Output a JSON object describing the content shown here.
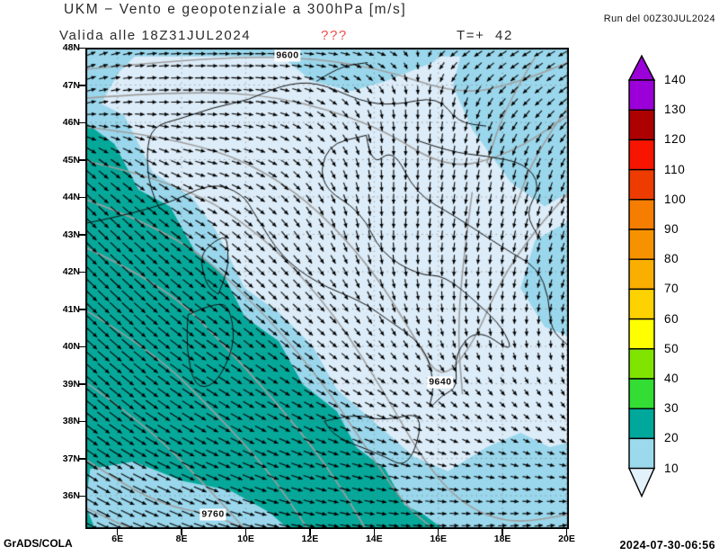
{
  "header": {
    "title": "UKM − Vento e geopotenziale a 300hPa [m/s]",
    "run_label": "Run del 00Z30JUL2024",
    "valid_label": "Valida alle 18Z31JUL2024",
    "missing_flag": "???",
    "lead_label": "T=+  42"
  },
  "footer": {
    "credit": "GrADS/COLA",
    "generated": "2024-07-30-06:56"
  },
  "axes": {
    "lat_labels": [
      "48N",
      "47N",
      "46N",
      "45N",
      "44N",
      "43N",
      "42N",
      "41N",
      "40N",
      "39N",
      "38N",
      "37N",
      "36N"
    ],
    "lon_labels": [
      "6E",
      "8E",
      "10E",
      "12E",
      "14E",
      "16E",
      "18E",
      "20E"
    ]
  },
  "colorbar": {
    "boundary_labels": [
      "140",
      "130",
      "120",
      "110",
      "100",
      "90",
      "80",
      "70",
      "60",
      "50",
      "40",
      "30",
      "20",
      "10"
    ],
    "band_colors_top_to_bottom": [
      "#9b00d8",
      "#ad0000",
      "#f81500",
      "#ee3c00",
      "#f57d00",
      "#f69200",
      "#f9ae00",
      "#fcd200",
      "#ffff00",
      "#80e400",
      "#33dd33",
      "#00a79b",
      "#9cd9ec"
    ],
    "above_max_color": "#9b00d8",
    "below_min_color": "#e2f1fa"
  },
  "contour_labels": [
    {
      "text": "9600",
      "fx": 0.418,
      "fy": 0.017
    },
    {
      "text": "9640",
      "fx": 0.734,
      "fy": 0.695
    },
    {
      "text": "9760",
      "fx": 0.264,
      "fy": 0.97
    }
  ],
  "chart_data": {
    "type": "map",
    "title": "UKM wind and geopotential at 300hPa",
    "units": "m/s",
    "lon_range": [
      5.0,
      20.1
    ],
    "lat_range": [
      35.1,
      48.0
    ],
    "shading_variable": "wind speed",
    "shading_levels": [
      10,
      20,
      30,
      40,
      50,
      60,
      70,
      80,
      90,
      100,
      110,
      120,
      130,
      140
    ],
    "shading_colors_low_to_high": [
      "#e2f1fa",
      "#9cd9ec",
      "#00a79b",
      "#33dd33",
      "#80e400",
      "#ffff00",
      "#fcd200",
      "#f9ae00",
      "#f69200",
      "#f57d00",
      "#ee3c00",
      "#f81500",
      "#ad0000",
      "#9b00d8"
    ],
    "contour_variable": "geopotential height",
    "contour_interval": 20,
    "labeled_contours": [
      9600,
      9640,
      9760
    ],
    "colors": {
      "pale": "#dcecf8",
      "light": "#9ad7ec",
      "teal": "#06a89a",
      "contour": "#9e9e9e",
      "coast": "#111111",
      "arrow": "#000000"
    },
    "regions": [
      {
        "color": "light",
        "points": [
          [
            0,
            0.1
          ],
          [
            0.08,
            0.14
          ],
          [
            0.14,
            0.26
          ],
          [
            0.22,
            0.31
          ],
          [
            0.27,
            0.38
          ],
          [
            0.33,
            0.5
          ],
          [
            0.4,
            0.55
          ],
          [
            0.47,
            0.62
          ],
          [
            0.52,
            0.71
          ],
          [
            0.6,
            0.78
          ],
          [
            0.68,
            0.85
          ],
          [
            0.75,
            0.88
          ],
          [
            0.83,
            0.83
          ],
          [
            0.9,
            0.8
          ],
          [
            0.96,
            0.83
          ],
          [
            1,
            0.82
          ],
          [
            1,
            1
          ],
          [
            0,
            1
          ]
        ]
      },
      {
        "color": "light",
        "points": [
          [
            0,
            0
          ],
          [
            1,
            0
          ],
          [
            1,
            0.018
          ],
          [
            0,
            0.018
          ]
        ]
      },
      {
        "color": "light",
        "points": [
          [
            0,
            0
          ],
          [
            0.12,
            0
          ],
          [
            0.07,
            0.05
          ],
          [
            0.03,
            0.12
          ],
          [
            0,
            0.15
          ]
        ]
      },
      {
        "color": "light",
        "points": [
          [
            0.4,
            0
          ],
          [
            0.75,
            0
          ],
          [
            0.72,
            0.03
          ],
          [
            0.62,
            0.07
          ],
          [
            0.55,
            0.09
          ],
          [
            0.47,
            0.07
          ],
          [
            0.42,
            0.03
          ]
        ]
      },
      {
        "color": "light",
        "points": [
          [
            0.78,
            0
          ],
          [
            1,
            0
          ],
          [
            1,
            0.3
          ],
          [
            0.95,
            0.33
          ],
          [
            0.88,
            0.28
          ],
          [
            0.8,
            0.17
          ],
          [
            0.76,
            0.08
          ]
        ]
      },
      {
        "color": "light",
        "points": [
          [
            1,
            0.36
          ],
          [
            0.93,
            0.4
          ],
          [
            0.9,
            0.5
          ],
          [
            0.95,
            0.58
          ],
          [
            1,
            0.6
          ]
        ]
      },
      {
        "color": "pale",
        "points": [
          [
            0.62,
            0.52
          ],
          [
            0.7,
            0.55
          ],
          [
            0.73,
            0.62
          ],
          [
            0.7,
            0.7
          ],
          [
            0.65,
            0.66
          ],
          [
            0.61,
            0.58
          ]
        ]
      },
      {
        "color": "pale",
        "points": [
          [
            0.88,
            0.6
          ],
          [
            0.94,
            0.58
          ],
          [
            0.985,
            0.62
          ],
          [
            0.97,
            0.68
          ],
          [
            0.91,
            0.7
          ],
          [
            0.87,
            0.66
          ]
        ]
      },
      {
        "color": "teal",
        "points": [
          [
            0,
            0.155
          ],
          [
            0.06,
            0.2
          ],
          [
            0.11,
            0.295
          ],
          [
            0.175,
            0.33
          ],
          [
            0.225,
            0.42
          ],
          [
            0.285,
            0.47
          ],
          [
            0.33,
            0.56
          ],
          [
            0.4,
            0.61
          ],
          [
            0.45,
            0.7
          ],
          [
            0.52,
            0.755
          ],
          [
            0.56,
            0.83
          ],
          [
            0.62,
            0.875
          ],
          [
            0.66,
            0.95
          ],
          [
            0.7,
            0.97
          ],
          [
            0.74,
            1.0
          ],
          [
            0,
            1
          ]
        ]
      },
      {
        "color": "light",
        "points": [
          [
            0.01,
            0.875
          ],
          [
            0.1,
            0.86
          ],
          [
            0.2,
            0.9
          ],
          [
            0.3,
            0.92
          ],
          [
            0.38,
            0.965
          ],
          [
            0.42,
            1.0
          ],
          [
            0.02,
            1.0
          ],
          [
            0,
            0.95
          ]
        ]
      }
    ],
    "contours": [
      [
        [
          0,
          0.045
        ],
        [
          0.2,
          0.025
        ],
        [
          0.42,
          0.017
        ],
        [
          0.6,
          0.04
        ],
        [
          0.78,
          0.1
        ],
        [
          0.9,
          0.07
        ],
        [
          1,
          0.03
        ]
      ],
      [
        [
          0,
          0.105
        ],
        [
          0.2,
          0.09
        ],
        [
          0.4,
          0.1
        ],
        [
          0.6,
          0.16
        ],
        [
          0.75,
          0.255
        ],
        [
          0.88,
          0.22
        ],
        [
          1,
          0.14
        ]
      ],
      [
        [
          0,
          0.165
        ],
        [
          0.22,
          0.19
        ],
        [
          0.42,
          0.28
        ],
        [
          0.58,
          0.44
        ],
        [
          0.68,
          0.6
        ],
        [
          0.734,
          0.695
        ],
        [
          0.8,
          0.62
        ],
        [
          0.86,
          0.48
        ],
        [
          0.93,
          0.38
        ],
        [
          1,
          0.3
        ]
      ],
      [
        [
          0,
          0.235
        ],
        [
          0.2,
          0.28
        ],
        [
          0.38,
          0.4
        ],
        [
          0.52,
          0.56
        ],
        [
          0.62,
          0.72
        ],
        [
          0.7,
          0.86
        ],
        [
          0.78,
          0.95
        ],
        [
          0.88,
          0.99
        ],
        [
          1,
          0.97
        ]
      ],
      [
        [
          0,
          0.315
        ],
        [
          0.18,
          0.38
        ],
        [
          0.34,
          0.52
        ],
        [
          0.48,
          0.68
        ],
        [
          0.58,
          0.83
        ],
        [
          0.66,
          0.95
        ],
        [
          0.72,
          1.0
        ]
      ],
      [
        [
          0,
          0.415
        ],
        [
          0.16,
          0.49
        ],
        [
          0.3,
          0.63
        ],
        [
          0.44,
          0.79
        ],
        [
          0.52,
          0.9
        ],
        [
          0.58,
          1.0
        ]
      ],
      [
        [
          0,
          0.545
        ],
        [
          0.14,
          0.63
        ],
        [
          0.27,
          0.76
        ],
        [
          0.38,
          0.88
        ],
        [
          0.46,
          1.0
        ]
      ],
      [
        [
          0,
          0.695
        ],
        [
          0.12,
          0.78
        ],
        [
          0.24,
          0.9
        ],
        [
          0.33,
          1.0
        ]
      ],
      [
        [
          0,
          0.855
        ],
        [
          0.09,
          0.915
        ],
        [
          0.18,
          0.955
        ],
        [
          0.264,
          0.97
        ],
        [
          0.33,
          1.0
        ]
      ],
      [
        [
          0,
          0.955
        ],
        [
          0.06,
          0.985
        ],
        [
          0.1,
          1.0
        ]
      ],
      [
        [
          0.93,
          0.02
        ],
        [
          0.87,
          0.12
        ],
        [
          0.83,
          0.24
        ]
      ],
      [
        [
          1.0,
          0.12
        ],
        [
          0.93,
          0.22
        ],
        [
          0.89,
          0.33
        ]
      ],
      [
        [
          0.8,
          0.3
        ],
        [
          0.78,
          0.45
        ],
        [
          0.77,
          0.6
        ],
        [
          0.78,
          0.72
        ]
      ]
    ],
    "coastlines": [
      [
        [
          0,
          0.365
        ],
        [
          0.153,
          0.334
        ],
        [
          0.259,
          0.279
        ],
        [
          0.325,
          0.303
        ],
        [
          0.352,
          0.349
        ],
        [
          0.405,
          0.434
        ],
        [
          0.478,
          0.489
        ],
        [
          0.571,
          0.527
        ],
        [
          0.617,
          0.559
        ],
        [
          0.703,
          0.62
        ],
        [
          0.723,
          0.706
        ],
        [
          0.707,
          0.756
        ],
        [
          0.737,
          0.722
        ],
        [
          0.77,
          0.706
        ],
        [
          0.763,
          0.636
        ],
        [
          0.81,
          0.582
        ],
        [
          0.886,
          0.636
        ],
        [
          0.863,
          0.582
        ],
        [
          0.816,
          0.535
        ],
        [
          0.743,
          0.473
        ],
        [
          0.69,
          0.473
        ],
        [
          0.611,
          0.427
        ],
        [
          0.571,
          0.341
        ],
        [
          0.484,
          0.287
        ],
        [
          0.498,
          0.202
        ],
        [
          0.581,
          0.182
        ]
      ],
      [
        [
          0.581,
          0.182
        ],
        [
          0.591,
          0.248
        ],
        [
          0.637,
          0.209
        ],
        [
          0.683,
          0.303
        ],
        [
          0.763,
          0.349
        ],
        [
          0.869,
          0.419
        ],
        [
          0.936,
          0.458
        ],
        [
          0.959,
          0.52
        ],
        [
          0.962,
          0.586
        ],
        [
          1,
          0.62
        ]
      ],
      [
        [
          0.494,
          0.776
        ],
        [
          0.554,
          0.76
        ],
        [
          0.617,
          0.776
        ],
        [
          0.703,
          0.755
        ],
        [
          0.67,
          0.876
        ],
        [
          0.61,
          0.845
        ],
        [
          0.518,
          0.81
        ],
        [
          0.494,
          0.776
        ]
      ],
      [
        [
          0.212,
          0.555
        ],
        [
          0.279,
          0.524
        ],
        [
          0.302,
          0.551
        ],
        [
          0.309,
          0.62
        ],
        [
          0.269,
          0.702
        ],
        [
          0.226,
          0.706
        ],
        [
          0.209,
          0.628
        ],
        [
          0.212,
          0.555
        ]
      ],
      [
        [
          0.275,
          0.512
        ],
        [
          0.295,
          0.465
        ],
        [
          0.295,
          0.415
        ],
        [
          0.289,
          0.388
        ],
        [
          0.245,
          0.419
        ],
        [
          0.239,
          0.45
        ],
        [
          0.252,
          0.496
        ],
        [
          0.275,
          0.512
        ]
      ],
      [
        [
          0.153,
          0.334
        ],
        [
          0.133,
          0.295
        ],
        [
          0.126,
          0.217
        ],
        [
          0.139,
          0.163
        ],
        [
          0.199,
          0.147
        ],
        [
          0.265,
          0.124
        ],
        [
          0.338,
          0.109
        ],
        [
          0.405,
          0.078
        ],
        [
          0.478,
          0.07
        ],
        [
          0.571,
          0.112
        ],
        [
          0.637,
          0.12
        ],
        [
          0.73,
          0.101
        ],
        [
          0.77,
          0.155
        ],
        [
          0.829,
          0.163
        ]
      ],
      [
        [
          0.478,
          0.07
        ],
        [
          0.524,
          0.039
        ],
        [
          0.584,
          0.031
        ]
      ],
      [
        [
          0.69,
          0.194
        ],
        [
          0.756,
          0.217
        ],
        [
          0.829,
          0.225
        ],
        [
          0.909,
          0.24
        ],
        [
          0.942,
          0.287
        ],
        [
          0.909,
          0.345
        ],
        [
          0.942,
          0.4
        ]
      ]
    ],
    "wind_grid": {
      "nx": 9,
      "ny": 9,
      "u": [
        [
          12,
          16,
          18,
          18,
          16,
          14,
          -12,
          -14,
          -14
        ],
        [
          14,
          15,
          16,
          15,
          12,
          2,
          -2,
          -10,
          -12
        ],
        [
          16,
          16,
          16,
          14,
          8,
          0,
          -2,
          -4,
          -6
        ],
        [
          18,
          18,
          16,
          12,
          6,
          0,
          -2,
          -3,
          -4
        ],
        [
          20,
          20,
          18,
          14,
          10,
          4,
          0,
          -2,
          -4
        ],
        [
          22,
          22,
          20,
          16,
          12,
          8,
          4,
          2,
          0
        ],
        [
          22,
          22,
          20,
          18,
          16,
          14,
          10,
          8,
          6
        ],
        [
          24,
          24,
          22,
          20,
          18,
          16,
          14,
          12,
          10
        ],
        [
          24,
          24,
          22,
          20,
          18,
          16,
          14,
          13,
          12
        ]
      ],
      "v": [
        [
          6,
          2,
          0,
          0,
          -2,
          -5,
          -8,
          -8,
          -8
        ],
        [
          3,
          0,
          0,
          -3,
          -8,
          -14,
          -16,
          -12,
          -10
        ],
        [
          -14,
          -10,
          -4,
          -7,
          -12,
          -16,
          -16,
          -16,
          -14
        ],
        [
          -18,
          -16,
          -10,
          -12,
          -14,
          -16,
          -15,
          -15,
          -14
        ],
        [
          -20,
          -18,
          -14,
          -14,
          -12,
          -14,
          -14,
          -13,
          -12
        ],
        [
          -20,
          -18,
          -14,
          -12,
          -10,
          -10,
          -10,
          -10,
          -10
        ],
        [
          -18,
          -16,
          -12,
          -10,
          -8,
          -7,
          -8,
          -7,
          -7
        ],
        [
          -16,
          -12,
          -10,
          -8,
          -6,
          -4,
          -3,
          -3,
          -2
        ],
        [
          -12,
          -10,
          -8,
          -5,
          -3,
          -2,
          0,
          1,
          2
        ]
      ]
    }
  }
}
